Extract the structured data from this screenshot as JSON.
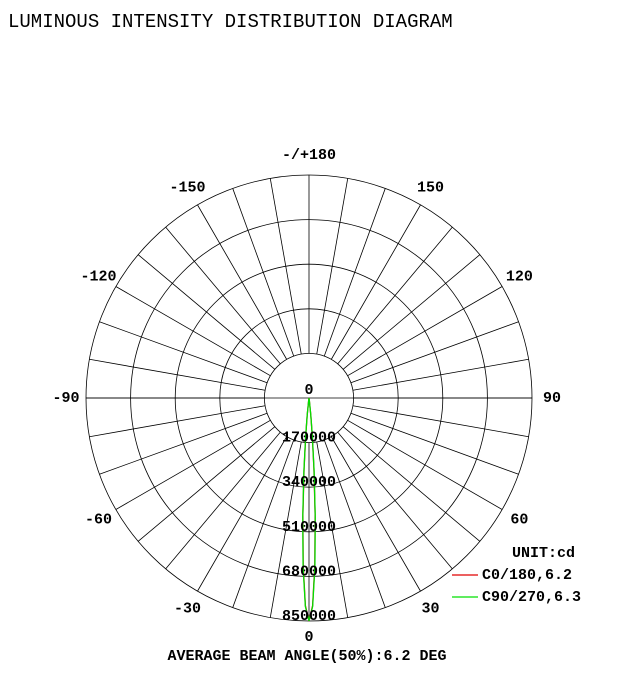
{
  "chart_data": {
    "type": "polar",
    "title": "LUMINOUS INTENSITY DISTRIBUTION DIAGRAM",
    "unit_label": "UNIT:cd",
    "footer": "AVERAGE BEAM ANGLE(50%):6.2 DEG",
    "rlim": [
      0,
      850000
    ],
    "rticks": [
      0,
      170000,
      340000,
      510000,
      680000,
      850000
    ],
    "angle_ticks": [
      0,
      30,
      60,
      90,
      120,
      150,
      {
        "value": 180,
        "label": "-/+180"
      },
      -150,
      -120,
      -90,
      -60,
      -30
    ],
    "series": [
      {
        "name": "C0/180,6.2",
        "color": "#e00000",
        "angles": [
          -10,
          -8,
          -6,
          -5,
          -4,
          -3,
          -2,
          -1,
          0,
          1,
          2,
          3,
          4,
          5,
          6,
          8,
          10
        ],
        "values": [
          0,
          8000,
          63000,
          140000,
          268000,
          444000,
          637000,
          791000,
          850000,
          791000,
          637000,
          444000,
          268000,
          140000,
          63000,
          8000,
          0
        ]
      },
      {
        "name": "C90/270,6.3",
        "color": "#00e000",
        "angles": [
          -10,
          -8,
          -6,
          -5,
          -4,
          -3,
          -2,
          -1,
          0,
          1,
          2,
          3,
          4,
          5,
          6,
          8,
          10
        ],
        "values": [
          0,
          9000,
          68000,
          148000,
          280000,
          455000,
          645000,
          795000,
          850000,
          795000,
          645000,
          455000,
          280000,
          148000,
          68000,
          9000,
          0
        ]
      }
    ]
  }
}
